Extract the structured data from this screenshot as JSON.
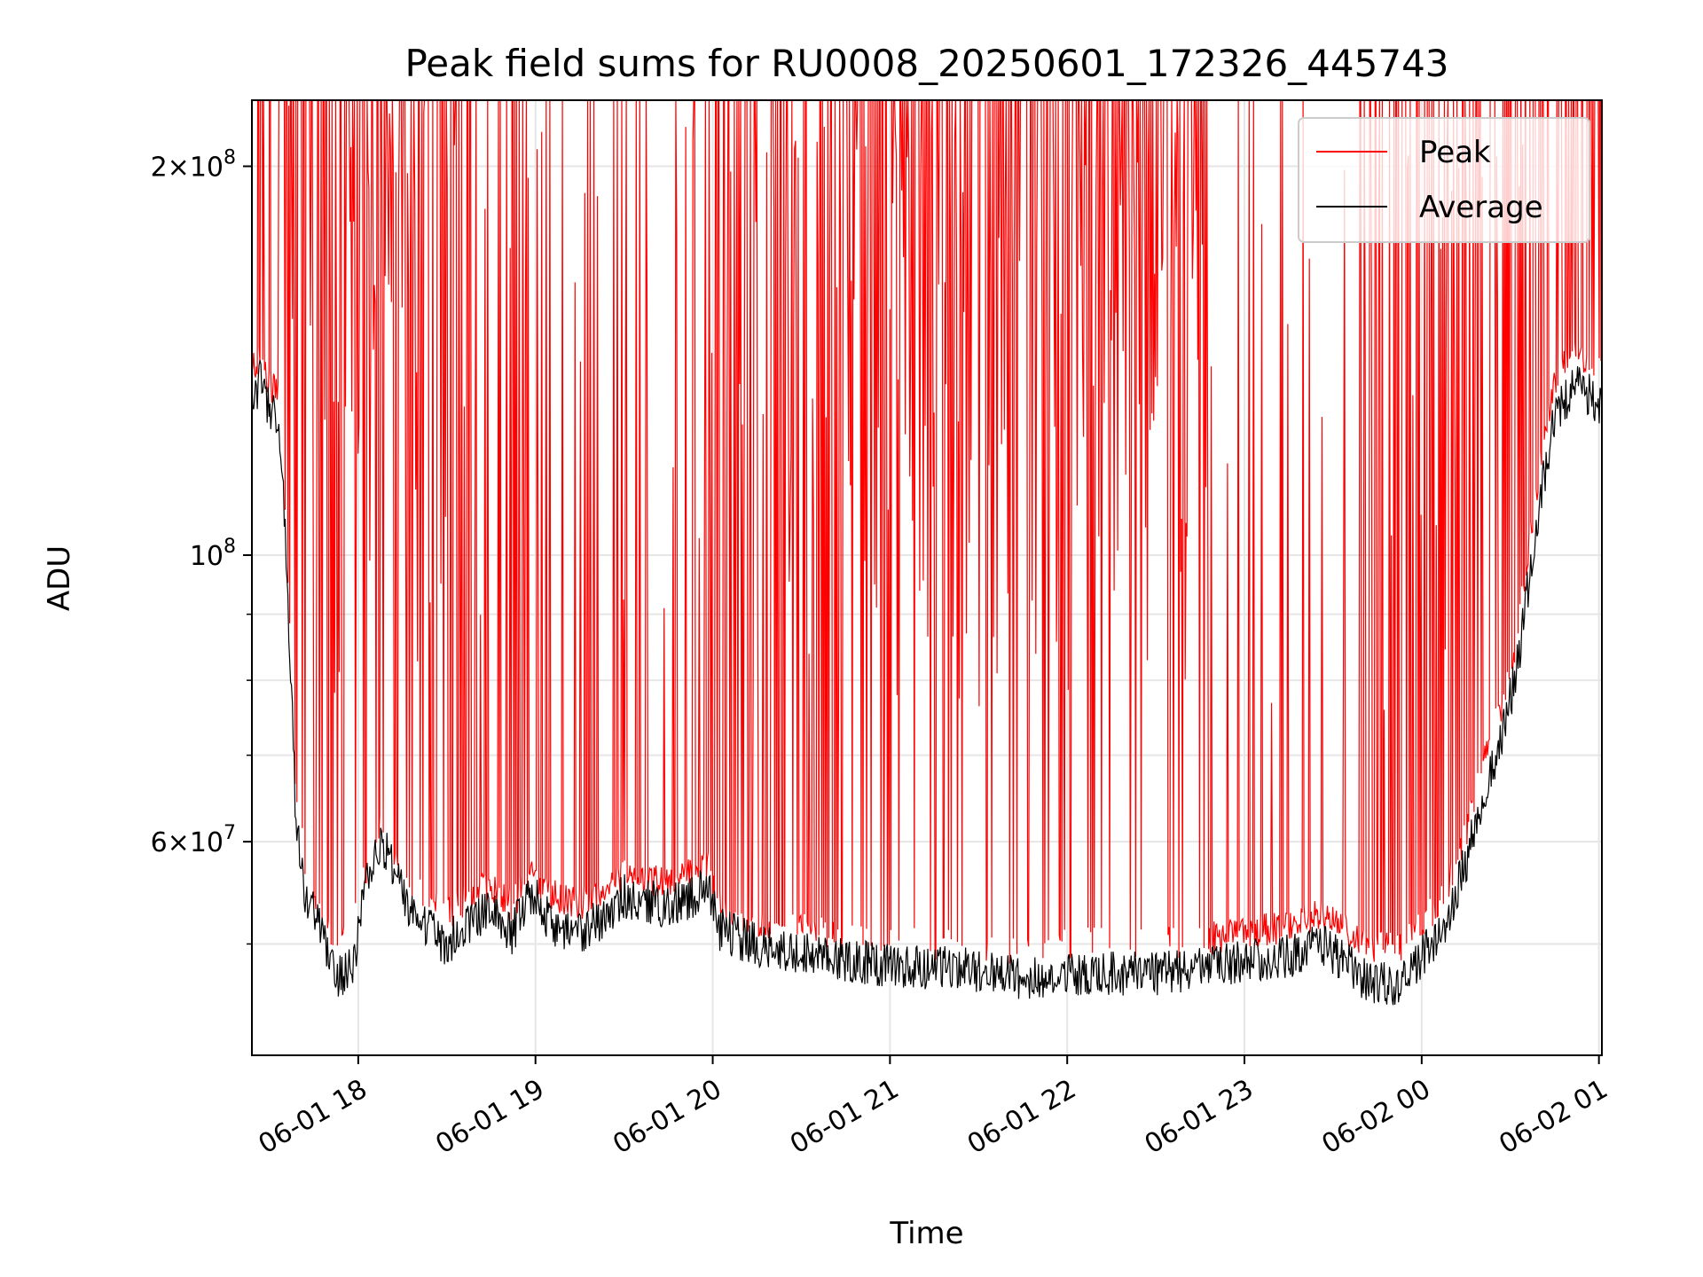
{
  "chart_data": {
    "type": "line",
    "title": "Peak field sums for RU0008_20250601_172326_445743",
    "xlabel": "Time",
    "ylabel": "ADU",
    "yscale": "log",
    "ylim": [
      41000000,
      225000000
    ],
    "xlim": [
      "2025-06-01 17:24",
      "2025-06-02 01:01"
    ],
    "grid": true,
    "legend_position": "top-right",
    "x_ticks": [
      "2025-06-01 18:00",
      "2025-06-01 19:00",
      "2025-06-01 20:00",
      "2025-06-01 21:00",
      "2025-06-01 22:00",
      "2025-06-01 23:00",
      "2025-06-02 00:00",
      "2025-06-02 01:00"
    ],
    "x_tick_labels": [
      "06-01 18",
      "06-01 19",
      "06-01 20",
      "06-01 21",
      "06-01 22",
      "06-01 23",
      "06-02 00",
      "06-02 01"
    ],
    "y_major_ticks": [
      {
        "value": 200000000,
        "mantissa": "2×10",
        "exp": "8"
      },
      {
        "value": 100000000,
        "mantissa": "10",
        "exp": "8"
      },
      {
        "value": 60000000,
        "mantissa": "6×10",
        "exp": "7"
      }
    ],
    "y_minor_ticks": [
      50000000,
      70000000,
      80000000,
      90000000
    ],
    "series": [
      {
        "name": "Peak",
        "color": "#ff0000",
        "baseline": [
          [
            "2025-06-01 17:24",
            137000000
          ],
          [
            "2025-06-01 17:27",
            141000000
          ],
          [
            "2025-06-01 17:30",
            134000000
          ],
          [
            "2025-06-01 17:33",
            131000000
          ],
          [
            "2025-06-01 17:35",
            112000000
          ],
          [
            "2025-06-01 17:37",
            85000000
          ],
          [
            "2025-06-01 17:39",
            64000000
          ],
          [
            "2025-06-01 17:42",
            57000000
          ],
          [
            "2025-06-01 17:48",
            52000000
          ],
          [
            "2025-06-01 17:53",
            49000000
          ],
          [
            "2025-06-01 17:58",
            51000000
          ],
          [
            "2025-06-01 18:03",
            57000000
          ],
          [
            "2025-06-01 18:08",
            61000000
          ],
          [
            "2025-06-01 18:12",
            58000000
          ],
          [
            "2025-06-01 18:18",
            55000000
          ],
          [
            "2025-06-01 18:25",
            53000000
          ],
          [
            "2025-06-01 18:30",
            52000000
          ],
          [
            "2025-06-01 18:38",
            54000000
          ],
          [
            "2025-06-01 18:45",
            55000000
          ],
          [
            "2025-06-01 18:52",
            53000000
          ],
          [
            "2025-06-01 18:59",
            56000000
          ],
          [
            "2025-06-01 19:05",
            54000000
          ],
          [
            "2025-06-01 19:15",
            53000000
          ],
          [
            "2025-06-01 19:25",
            55000000
          ],
          [
            "2025-06-01 19:30",
            56000000
          ],
          [
            "2025-06-01 19:38",
            55500000
          ],
          [
            "2025-06-01 19:45",
            55000000
          ],
          [
            "2025-06-01 19:53",
            56000000
          ],
          [
            "2025-06-01 19:58",
            57000000
          ],
          [
            "2025-06-01 20:02",
            53000000
          ],
          [
            "2025-06-01 20:10",
            52000000
          ],
          [
            "2025-06-01 20:20",
            51000000
          ],
          [
            "2025-06-01 20:35",
            50500000
          ],
          [
            "2025-06-01 20:50",
            50000000
          ],
          [
            "2025-06-01 21:05",
            49500000
          ],
          [
            "2025-06-01 21:20",
            49500000
          ],
          [
            "2025-06-01 21:35",
            49000000
          ],
          [
            "2025-06-01 21:50",
            49000000
          ],
          [
            "2025-06-01 22:05",
            49500000
          ],
          [
            "2025-06-01 22:20",
            49500000
          ],
          [
            "2025-06-01 22:35",
            49500000
          ],
          [
            "2025-06-01 22:50",
            50000000
          ],
          [
            "2025-06-01 23:00",
            50500000
          ],
          [
            "2025-06-01 23:15",
            51000000
          ],
          [
            "2025-06-01 23:25",
            52000000
          ],
          [
            "2025-06-01 23:32",
            51000000
          ],
          [
            "2025-06-01 23:40",
            49500000
          ],
          [
            "2025-06-01 23:48",
            49000000
          ],
          [
            "2025-06-01 23:55",
            49500000
          ],
          [
            "2025-06-02 00:00",
            51000000
          ],
          [
            "2025-06-02 00:08",
            54000000
          ],
          [
            "2025-06-02 00:15",
            60000000
          ],
          [
            "2025-06-02 00:20",
            67000000
          ],
          [
            "2025-06-02 00:28",
            77000000
          ],
          [
            "2025-06-02 00:32",
            85000000
          ],
          [
            "2025-06-02 00:40",
            115000000
          ],
          [
            "2025-06-02 00:45",
            135000000
          ],
          [
            "2025-06-02 00:52",
            142000000
          ],
          [
            "2025-06-02 00:57",
            140000000
          ],
          [
            "2025-06-02 01:01",
            138000000
          ]
        ]
      },
      {
        "name": "Average",
        "color": "#000000",
        "baseline": [
          [
            "2025-06-01 17:24",
            131000000
          ],
          [
            "2025-06-01 17:27",
            137000000
          ],
          [
            "2025-06-01 17:30",
            130000000
          ],
          [
            "2025-06-01 17:33",
            126000000
          ],
          [
            "2025-06-01 17:35",
            108000000
          ],
          [
            "2025-06-01 17:37",
            82000000
          ],
          [
            "2025-06-01 17:39",
            62000000
          ],
          [
            "2025-06-01 17:42",
            55000000
          ],
          [
            "2025-06-01 17:48",
            51000000
          ],
          [
            "2025-06-01 17:53",
            47000000
          ],
          [
            "2025-06-01 17:58",
            48000000
          ],
          [
            "2025-06-01 18:03",
            56000000
          ],
          [
            "2025-06-01 18:08",
            60000000
          ],
          [
            "2025-06-01 18:12",
            57000000
          ],
          [
            "2025-06-01 18:18",
            53000000
          ],
          [
            "2025-06-01 18:25",
            51000000
          ],
          [
            "2025-06-01 18:30",
            50000000
          ],
          [
            "2025-06-01 18:38",
            52000000
          ],
          [
            "2025-06-01 18:45",
            53000000
          ],
          [
            "2025-06-01 18:52",
            51000000
          ],
          [
            "2025-06-01 18:59",
            55000000
          ],
          [
            "2025-06-01 19:05",
            52000000
          ],
          [
            "2025-06-01 19:15",
            51000000
          ],
          [
            "2025-06-01 19:25",
            53000000
          ],
          [
            "2025-06-01 19:30",
            54500000
          ],
          [
            "2025-06-01 19:38",
            54000000
          ],
          [
            "2025-06-01 19:45",
            53500000
          ],
          [
            "2025-06-01 19:53",
            54500000
          ],
          [
            "2025-06-01 19:58",
            55500000
          ],
          [
            "2025-06-01 20:02",
            51500000
          ],
          [
            "2025-06-01 20:10",
            50500000
          ],
          [
            "2025-06-01 20:20",
            49500000
          ],
          [
            "2025-06-01 20:35",
            49000000
          ],
          [
            "2025-06-01 20:50",
            48500000
          ],
          [
            "2025-06-01 21:05",
            48000000
          ],
          [
            "2025-06-01 21:20",
            48000000
          ],
          [
            "2025-06-01 21:35",
            47500000
          ],
          [
            "2025-06-01 21:50",
            47000000
          ],
          [
            "2025-06-01 22:05",
            47500000
          ],
          [
            "2025-06-01 22:20",
            47500000
          ],
          [
            "2025-06-01 22:35",
            47500000
          ],
          [
            "2025-06-01 22:50",
            48000000
          ],
          [
            "2025-06-01 23:00",
            48500000
          ],
          [
            "2025-06-01 23:15",
            49000000
          ],
          [
            "2025-06-01 23:25",
            50000000
          ],
          [
            "2025-06-01 23:32",
            49000000
          ],
          [
            "2025-06-01 23:40",
            47000000
          ],
          [
            "2025-06-01 23:48",
            46500000
          ],
          [
            "2025-06-01 23:55",
            47000000
          ],
          [
            "2025-06-02 00:00",
            49000000
          ],
          [
            "2025-06-02 00:08",
            52000000
          ],
          [
            "2025-06-02 00:15",
            58000000
          ],
          [
            "2025-06-02 00:20",
            64000000
          ],
          [
            "2025-06-02 00:28",
            74000000
          ],
          [
            "2025-06-02 00:32",
            81000000
          ],
          [
            "2025-06-02 00:40",
            110000000
          ],
          [
            "2025-06-02 00:45",
            128000000
          ],
          [
            "2025-06-02 00:52",
            136000000
          ],
          [
            "2025-06-02 00:57",
            133000000
          ],
          [
            "2025-06-02 01:01",
            131000000
          ]
        ]
      }
    ]
  }
}
